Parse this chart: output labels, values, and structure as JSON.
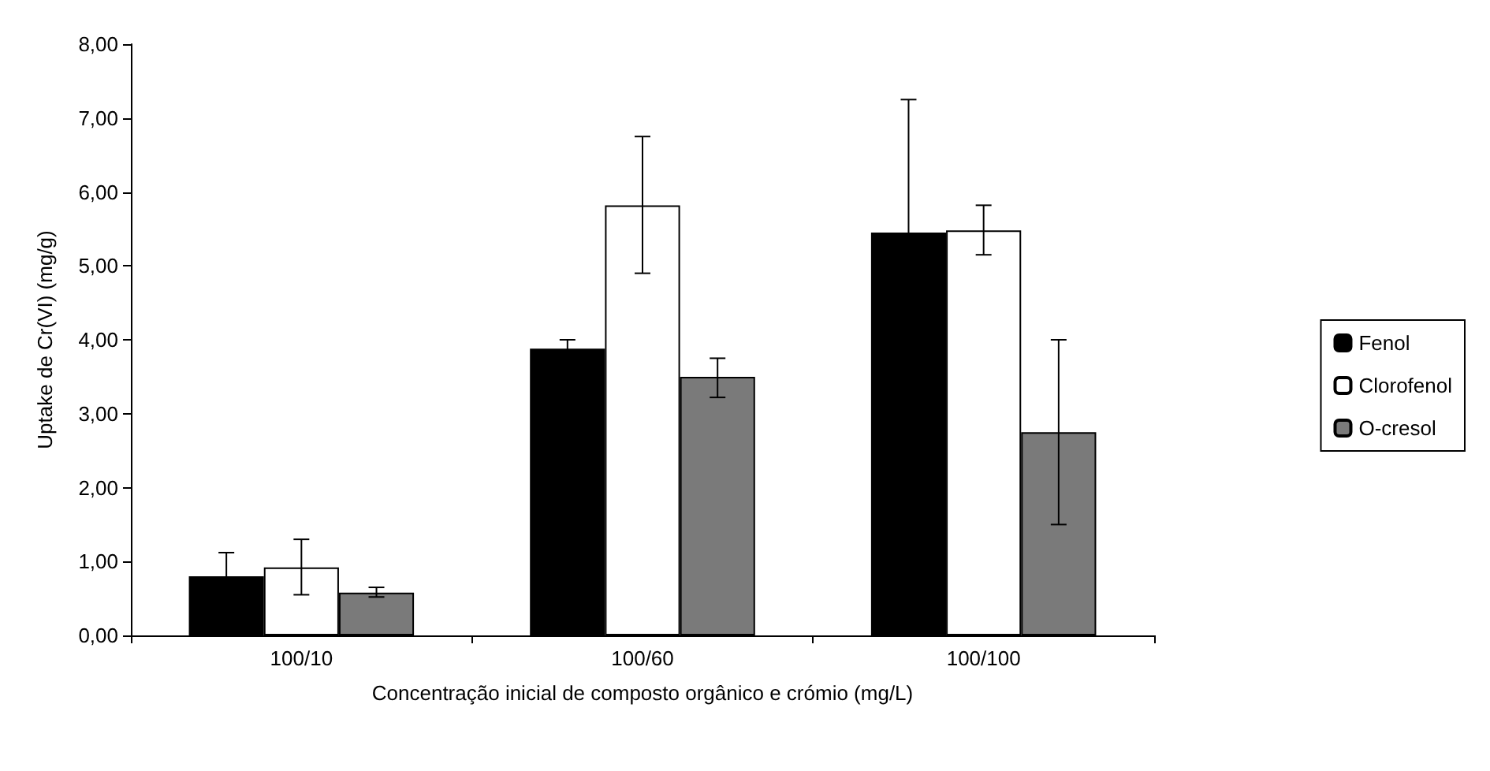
{
  "chart_data": {
    "type": "bar",
    "xlabel": "Concentração inicial de composto orgânico e crómio (mg/L)",
    "ylabel": "Uptake de Cr(VI) (mg/g)",
    "categories": [
      "100/10",
      "100/60",
      "100/100"
    ],
    "series": [
      {
        "name": "Fenol",
        "color": "#000000",
        "values": [
          0.8,
          3.88,
          5.45
        ],
        "errors": [
          0.32,
          0.12,
          1.8
        ]
      },
      {
        "name": "Clorofenol",
        "color": "#ffffff",
        "values": [
          0.92,
          5.82,
          5.48
        ],
        "errors": [
          [
            0.55,
            1.3
          ],
          [
            4.9,
            6.75
          ],
          [
            5.15,
            5.82
          ]
        ]
      },
      {
        "name": "O-cresol",
        "color": "#7a7a7a",
        "values": [
          0.58,
          3.5,
          2.75
        ],
        "errors": [
          [
            0.52,
            0.65
          ],
          [
            3.22,
            3.75
          ],
          [
            1.5,
            4.0
          ]
        ]
      }
    ],
    "ylim": [
      0,
      8
    ],
    "yticks": [
      {
        "value": 0,
        "label": "0,00"
      },
      {
        "value": 1,
        "label": "1,00"
      },
      {
        "value": 2,
        "label": "2,00"
      },
      {
        "value": 3,
        "label": "3,00"
      },
      {
        "value": 4,
        "label": "4,00"
      },
      {
        "value": 5,
        "label": "5,00"
      },
      {
        "value": 6,
        "label": "6,00"
      },
      {
        "value": 7,
        "label": "7,00"
      },
      {
        "value": 8,
        "label": "8,00"
      }
    ],
    "grid": false,
    "legend": "right"
  }
}
